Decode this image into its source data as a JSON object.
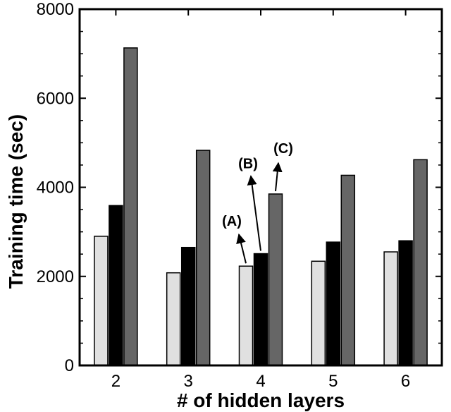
{
  "chart_data": {
    "type": "bar",
    "categories": [
      "2",
      "3",
      "4",
      "5",
      "6"
    ],
    "series": [
      {
        "values": [
          2900,
          2080,
          2230,
          2340,
          2550
        ],
        "color": "#e0e0e0"
      },
      {
        "values": [
          3590,
          2650,
          2510,
          2770,
          2800
        ],
        "color": "#000000"
      },
      {
        "values": [
          7130,
          4830,
          3850,
          4270,
          4620
        ],
        "color": "#666666"
      }
    ],
    "xlabel": "# of hidden layers",
    "ylabel": "Training time (sec)",
    "ylim": [
      0,
      8000
    ],
    "yticks": [
      0,
      2000,
      4000,
      6000,
      8000
    ],
    "grid": false,
    "annotations": [
      {
        "text": "(A)",
        "category": "4",
        "series_index": 0
      },
      {
        "text": "(B)",
        "category": "4",
        "series_index": 1
      },
      {
        "text": "(C)",
        "category": "4",
        "series_index": 2
      }
    ]
  }
}
